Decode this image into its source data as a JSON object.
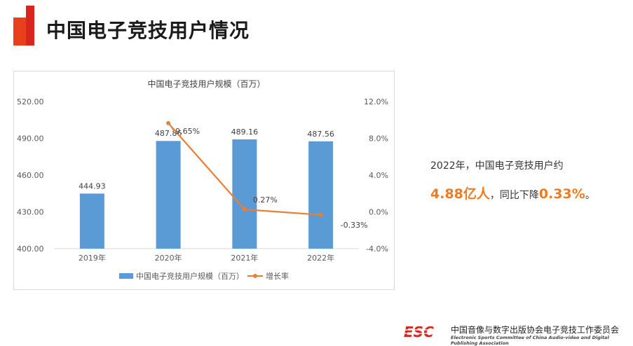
{
  "slide": {
    "title": "中国电子竞技用户情况"
  },
  "summary": {
    "line1": "2022年，中国电子竞技用户约",
    "value_users": "4.88亿人",
    "mid_text": "，同比下降",
    "value_change": "0.33%",
    "end_text": "。"
  },
  "footer": {
    "logo_text": "ESC",
    "org_cn": "中国音像与数字出版协会电子竞技工作委员会",
    "org_en": "Electronic Sports Committee of China Audio-video and Digital Publishing Association"
  },
  "colors": {
    "bar": "#5b9bd5",
    "line": "#ed7d31",
    "accent": "#f07b1f",
    "deco_orange": "#f28c1f",
    "deco_red": "#d9261c"
  },
  "chart_data": {
    "type": "bar+line",
    "title": "中国电子竞技用户规模（百万）",
    "categories": [
      "2019年",
      "2020年",
      "2021年",
      "2022年"
    ],
    "series": [
      {
        "name": "中国电子竞技用户规模（百万）",
        "kind": "bar",
        "axis": "left",
        "values": [
          444.93,
          487.86,
          489.16,
          487.56
        ],
        "labels": [
          "444.93",
          "487.86",
          "489.16",
          "487.56"
        ]
      },
      {
        "name": "增长率",
        "kind": "line",
        "axis": "right",
        "values": [
          null,
          9.65,
          0.27,
          -0.33
        ],
        "labels": [
          "",
          "9.65%",
          "0.27%",
          "-0.33%"
        ]
      }
    ],
    "y_left": {
      "min": 400,
      "max": 520,
      "ticks": [
        "400.00",
        "430.00",
        "460.00",
        "490.00",
        "520.00"
      ]
    },
    "y_right": {
      "min": -4,
      "max": 12,
      "ticks": [
        "-4.0%",
        "0.0%",
        "4.0%",
        "8.0%",
        "12.0%"
      ]
    },
    "legend_position": "bottom",
    "grid": false
  }
}
